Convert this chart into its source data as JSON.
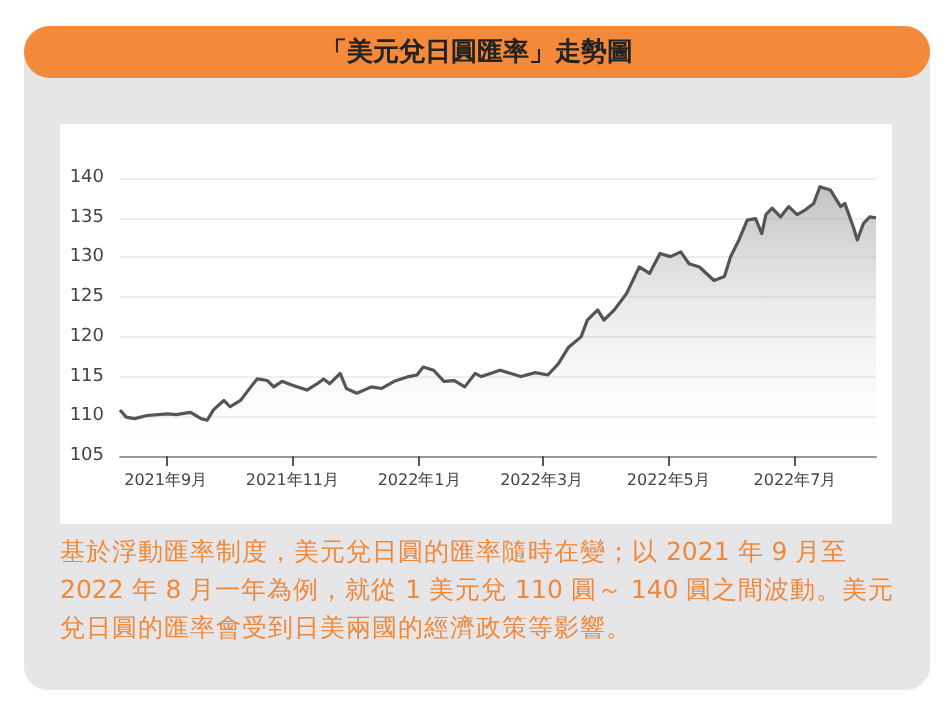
{
  "chart_data": {
    "type": "area",
    "title": "「美元兌日圓匯率」走勢圖",
    "annotations": [
      "基於浮動匯率制度，美元兌日圓的匯率隨時在變；以 2021 年 9 月至 2022 年 8 月一年為例，就從 1 美元兌 110 圓～ 140 圓之間波動。美元兌日圓的匯率會受到日美兩國的經濟政策等影響。"
    ],
    "x": [
      "2021-08-10",
      "2021-08-13",
      "2021-08-17",
      "2021-08-23",
      "2021-09-02",
      "2021-09-06",
      "2021-09-13",
      "2021-09-18",
      "2021-09-21",
      "2021-09-24",
      "2021-09-29",
      "2021-10-02",
      "2021-10-07",
      "2021-10-12",
      "2021-10-15",
      "2021-10-20",
      "2021-10-23",
      "2021-10-27",
      "2021-11-01",
      "2021-11-08",
      "2021-11-13",
      "2021-11-16",
      "2021-11-19",
      "2021-11-24",
      "2021-11-27",
      "2021-12-02",
      "2021-12-09",
      "2021-12-14",
      "2021-12-20",
      "2021-12-27",
      "2021-12-31",
      "2022-01-03",
      "2022-01-08",
      "2022-01-13",
      "2022-01-18",
      "2022-01-23",
      "2022-01-28",
      "2022-01-31",
      "2022-02-09",
      "2022-02-19",
      "2022-02-26",
      "2022-03-04",
      "2022-03-09",
      "2022-03-14",
      "2022-03-20",
      "2022-03-23",
      "2022-03-28",
      "2022-03-31",
      "2022-04-05",
      "2022-04-11",
      "2022-04-17",
      "2022-04-22",
      "2022-04-27",
      "2022-05-02",
      "2022-05-07",
      "2022-05-11",
      "2022-05-16",
      "2022-05-23",
      "2022-05-28",
      "2022-05-31",
      "2022-06-04",
      "2022-06-08",
      "2022-06-12",
      "2022-06-15",
      "2022-06-17",
      "2022-06-20",
      "2022-06-24",
      "2022-06-28",
      "2022-07-02",
      "2022-07-06",
      "2022-07-10",
      "2022-07-13",
      "2022-07-18",
      "2022-07-23",
      "2022-07-25",
      "2022-07-29",
      "2022-07-31",
      "2022-08-03",
      "2022-08-06",
      "2022-08-09"
    ],
    "series": [
      {
        "color": "#555555",
        "values": [
          110.8,
          109.9,
          109.7,
          110.1,
          110.3,
          110.2,
          110.5,
          109.7,
          109.5,
          110.8,
          112.0,
          111.2,
          112.0,
          113.7,
          114.7,
          114.5,
          113.7,
          114.4,
          113.9,
          113.3,
          114.1,
          114.7,
          114.1,
          115.4,
          113.5,
          112.9,
          113.7,
          113.5,
          114.4,
          115.0,
          115.2,
          116.2,
          115.8,
          114.4,
          114.5,
          113.7,
          115.4,
          115.0,
          115.8,
          115.0,
          115.5,
          115.2,
          116.6,
          118.7,
          120.0,
          122.1,
          123.4,
          122.1,
          123.4,
          125.5,
          128.8,
          128.0,
          130.5,
          130.1,
          130.7,
          129.2,
          128.8,
          127.1,
          127.6,
          130.1,
          132.2,
          134.7,
          134.9,
          133.0,
          135.4,
          136.2,
          135.1,
          136.4,
          135.4,
          136.0,
          136.8,
          138.9,
          138.5,
          136.4,
          136.8,
          133.9,
          132.2,
          134.3,
          135.1,
          135.0
        ]
      }
    ],
    "xlim": [
      "2021-08-10",
      "2022-08-09"
    ],
    "xticks": [
      {
        "value": "2021-09-01",
        "label": "2021年9月"
      },
      {
        "value": "2021-11-01",
        "label": "2021年11月"
      },
      {
        "value": "2022-01-01",
        "label": "2022年1月"
      },
      {
        "value": "2022-03-01",
        "label": "2022年3月"
      },
      {
        "value": "2022-05-01",
        "label": "2022年5月"
      },
      {
        "value": "2022-07-01",
        "label": "2022年7月"
      }
    ],
    "ylim": [
      105,
      140
    ],
    "yticks": [
      105,
      110,
      115,
      120,
      125,
      130,
      135,
      140
    ],
    "grid": "y",
    "marker": "none",
    "line_style": "solid"
  }
}
